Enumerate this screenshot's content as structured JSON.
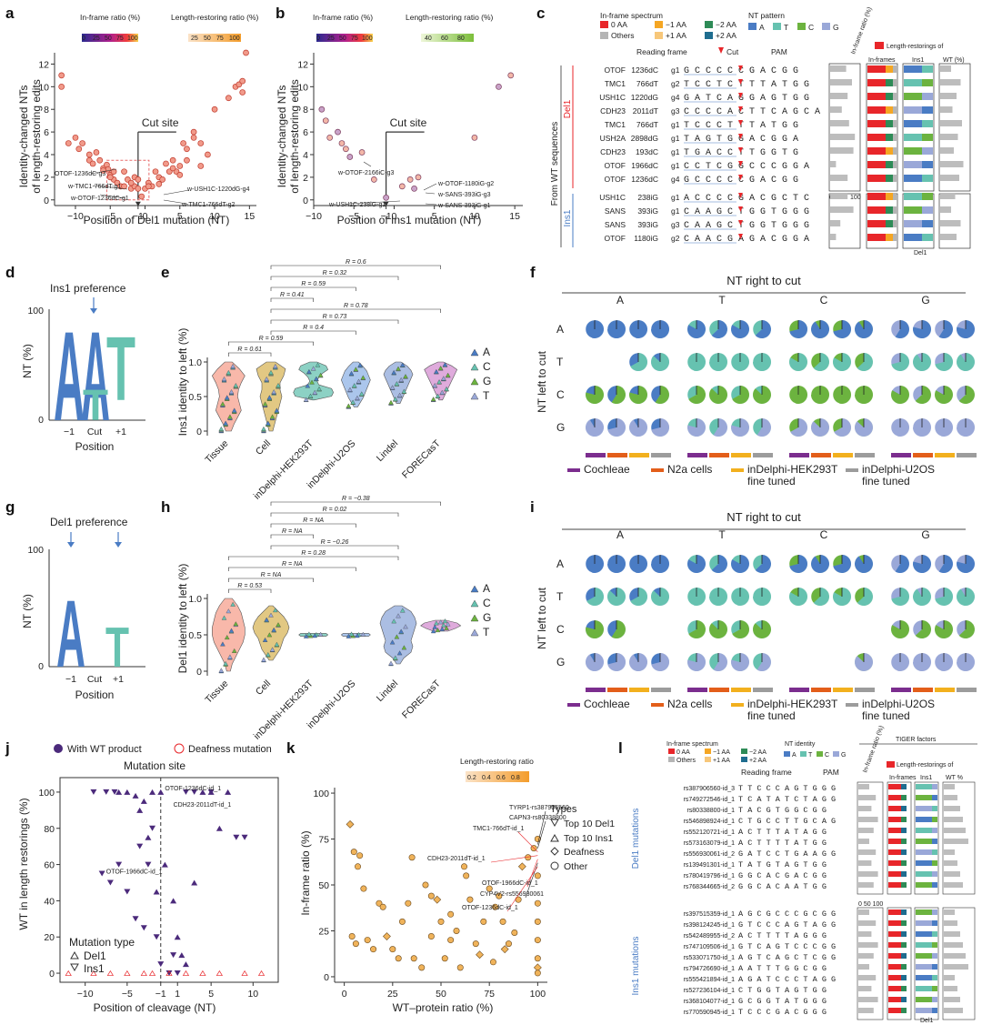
{
  "panels": {
    "a": {
      "letter": "a",
      "legend_inframe": "In-frame ratio (%)",
      "legend_inframe_ticks": [
        "0",
        "25",
        "50",
        "75",
        "100"
      ],
      "legend_length": "Length-restoring ratio (%)",
      "legend_length_ticks": [
        "25",
        "50",
        "75",
        "100"
      ],
      "ylabel_1": "Identity-changed NTs",
      "ylabel_2": "of length-restoring edits",
      "xlabel": "Position of Del1 mutation (NT)",
      "cut_label": "Cut site",
      "annotations": [
        "OTOF-1236dC-g3",
        "w-TMC1-766dT-g1",
        "w-OTOF-1236dC-g1",
        "w-USH1C-1220dG-g4",
        "w-TMC1-766dT-g2"
      ],
      "chart_data": {
        "type": "scatter",
        "xlabel": "Position of Del1 mutation (NT)",
        "ylabel": "Identity-changed NTs of length-restoring edits",
        "xlim": [
          -13,
          16
        ],
        "ylim": [
          -0.5,
          13
        ],
        "xticks": [
          -10,
          -5,
          -1,
          0,
          5,
          10,
          15
        ],
        "yticks": [
          0,
          2,
          4,
          6,
          8,
          10,
          12
        ],
        "x": [
          -12,
          -12,
          -11,
          -10,
          -9.5,
          -9,
          -8,
          -8,
          -7.5,
          -7,
          -6.5,
          -6,
          -5.5,
          -5.3,
          -5,
          -4.5,
          -4.5,
          -4,
          -3.5,
          -3,
          -3,
          -2.5,
          -2,
          -1.5,
          -1.5,
          -1,
          -0.5,
          0,
          0.5,
          1,
          1.5,
          2,
          2.5,
          3,
          3.5,
          4,
          4.5,
          5,
          5.5,
          6,
          7,
          8,
          9,
          10,
          12,
          13,
          13.5,
          14,
          14,
          14.5,
          -6,
          -5,
          -2,
          -1,
          0.5,
          2,
          4,
          5,
          6,
          7,
          8
        ],
        "y": [
          11,
          10,
          5,
          5.5,
          4.5,
          5,
          4,
          3.5,
          3.2,
          4.2,
          3.5,
          2.8,
          3.1,
          2.7,
          2.2,
          2.5,
          1.8,
          1.5,
          1.2,
          2.5,
          1.2,
          1.8,
          1,
          1.2,
          2,
          1,
          0.3,
          1,
          1.5,
          1.2,
          2.5,
          2,
          1.8,
          3.2,
          2.5,
          3.5,
          2.5,
          3,
          5,
          4.5,
          6,
          3,
          4,
          8,
          9,
          10,
          10.2,
          9.5,
          10.5,
          13,
          2.6,
          2,
          1.5,
          1.8,
          1.2,
          1.4,
          2.8,
          2.2,
          3.5,
          5.5,
          5
        ],
        "series": [
          {
            "name": "Cut site",
            "x": [
              -1,
              -1
            ],
            "y": [
              0,
              6
            ]
          }
        ]
      }
    },
    "b": {
      "letter": "b",
      "legend_inframe": "In-frame ratio (%)",
      "legend_inframe_ticks": [
        "0",
        "25",
        "50",
        "75",
        "100"
      ],
      "legend_length": "Length-restoring ratio (%)",
      "legend_length_ticks": [
        "40",
        "60",
        "80"
      ],
      "ylabel_1": "Identity-changed NTs",
      "ylabel_2": "of length-restoring edits",
      "xlabel": "Position of Ins1 mutation (NT)",
      "cut_label": "Cut site",
      "annotations": [
        "w-OTOF-2166iC-g3",
        "w-OTOF-1180iG-g2",
        "w-SANS-393iG-g3",
        "w-USH1C-238iG-g1",
        "w-SANS-393iG-g1"
      ],
      "chart_data": {
        "type": "scatter",
        "xlabel": "Position of Ins1 mutation (NT)",
        "ylabel": "Identity-changed NTs of length-restoring edits",
        "xlim": [
          -10,
          16
        ],
        "ylim": [
          -0.5,
          13
        ],
        "xticks": [
          -10,
          -5,
          -1,
          0,
          5,
          10,
          15
        ],
        "yticks": [
          0,
          2,
          4,
          6,
          8,
          10,
          12
        ],
        "x": [
          -9,
          -8.5,
          -8,
          -7,
          -6.5,
          -6,
          -5.5,
          -4,
          -2.5,
          -1,
          1,
          2,
          2.5,
          3,
          10,
          13,
          14.5
        ],
        "y": [
          8,
          7,
          5.5,
          6,
          5,
          4.5,
          3.8,
          4.2,
          1.8,
          0.2,
          1.2,
          1.8,
          1,
          2,
          5.5,
          10,
          11
        ],
        "series": [
          {
            "name": "Cut site",
            "x": [
              -1,
              -1
            ],
            "y": [
              0,
              6
            ]
          }
        ]
      }
    },
    "c": {
      "letter": "c",
      "legend_spectrum": "In-frame spectrum",
      "spectrum_items": [
        "0 AA",
        "−1 AA",
        "−2 AA",
        "Others",
        "+1 AA",
        "+2 AA"
      ],
      "legend_nt": "NT pattern",
      "nt_items": [
        "A",
        "T",
        "C",
        "G"
      ],
      "reading_frame": "Reading frame",
      "cut": "Cut",
      "pam": "PAM",
      "inframe_ratio": "In-frame ratio (%)",
      "length_restoring": "Length-restorings of",
      "col_inframes": "In-frames",
      "col_ins1": "Ins1",
      "col_wt": "WT (%)",
      "group_del": "Del1",
      "group_ins": "Ins1",
      "from_wt": "From WT sequences",
      "axis_ticks": [
        "0",
        "50",
        "100"
      ],
      "del1_under": "Del1",
      "rows": [
        {
          "gene": "OTOF",
          "mut": "1236dC",
          "g": "g1",
          "seq": "G C C C C C G A C G G"
        },
        {
          "gene": "TMC1",
          "mut": "766dT",
          "g": "g2",
          "seq": "T C C T C T T T A T G G"
        },
        {
          "gene": "USH1C",
          "mut": "1220dG",
          "g": "g4",
          "seq": "G A T C A G G A G T G G"
        },
        {
          "gene": "CDH23",
          "mut": "2011dT",
          "g": "g3",
          "seq": "C C C C A C T T C A G C A"
        },
        {
          "gene": "TMC1",
          "mut": "766dT",
          "g": "g1",
          "seq": "T C C C T T T A T G G"
        },
        {
          "gene": "USH2A",
          "mut": "2898dG",
          "g": "g1",
          "seq": "T A G T G G A C G G A"
        },
        {
          "gene": "CDH23",
          "mut": "193dC",
          "g": "g1",
          "seq": "T G A C C T T G G T G"
        },
        {
          "gene": "OTOF",
          "mut": "1966dC",
          "g": "g1",
          "seq": "C C T C G G C C C G G A"
        },
        {
          "gene": "OTOF",
          "mut": "1236dC",
          "g": "g4",
          "seq": "G C C C C C G A C G G"
        },
        {
          "gene": "USH1C",
          "mut": "238iG",
          "g": "g1",
          "seq": "A C C C C G A C G C T C"
        },
        {
          "gene": "SANS",
          "mut": "393iG",
          "g": "g1",
          "seq": "C A A G C T G G T G G G"
        },
        {
          "gene": "SANS",
          "mut": "393iG",
          "g": "g3",
          "seq": "C A A G C T G G T G G G"
        },
        {
          "gene": "OTOF",
          "mut": "1180iG",
          "g": "g2",
          "seq": "C A A C G A G A C G G A"
        }
      ]
    },
    "d": {
      "letter": "d",
      "title": "Ins1 preference",
      "ylabel": "NT (%)",
      "xlabel": "Position",
      "xticks": [
        "−1",
        "Cut",
        "+1"
      ],
      "yticks": [
        "0",
        "100"
      ]
    },
    "e": {
      "letter": "e",
      "ylabel": "Ins1 identity to left (%)",
      "groups": [
        "Tissue",
        "Cell",
        "inDelphi-HEK293T",
        "inDelphi-U2OS",
        "Lindel",
        "FORECasT"
      ],
      "yticks": [
        "0",
        "0.5",
        "1.0"
      ],
      "r_labels": [
        "R = 0.6",
        "R = 0.32",
        "R = 0.59",
        "R = 0.41",
        "R = 0.78",
        "R = 0.73",
        "R = 0.4",
        "R = 0.59",
        "R = 0.61"
      ],
      "legend": [
        "A",
        "C",
        "G",
        "T"
      ]
    },
    "f": {
      "letter": "f",
      "title": "NT right to cut",
      "ylabel": "NT left to cut",
      "cols": [
        "A",
        "T",
        "C",
        "G"
      ],
      "rows": [
        "A",
        "T",
        "C",
        "G"
      ],
      "legend": [
        "Cochleae",
        "N2a cells",
        "inDelphi-HEK293T fine tuned",
        "inDelphi-U2OS fine tuned"
      ]
    },
    "g": {
      "letter": "g",
      "title": "Del1 preference",
      "ylabel": "NT (%)",
      "xlabel": "Position",
      "xticks": [
        "−1",
        "Cut",
        "+1"
      ],
      "yticks": [
        "0",
        "100"
      ]
    },
    "h": {
      "letter": "h",
      "ylabel": "Del1 identity to left (%)",
      "groups": [
        "Tissue",
        "Cell",
        "inDelphi-HEK293T",
        "inDelphi-U2OS",
        "Lindel",
        "FORECasT"
      ],
      "yticks": [
        "0",
        "0.5",
        "1.0"
      ],
      "r_labels": [
        "R = −0.38",
        "R = 0.02",
        "R = NA",
        "R = NA",
        "R = −0.26",
        "R = 0.28",
        "R = NA",
        "R = NA",
        "R = 0.53"
      ],
      "legend": [
        "A",
        "C",
        "G",
        "T"
      ]
    },
    "i": {
      "letter": "i",
      "title": "NT right to cut",
      "ylabel": "NT left to cut",
      "cols": [
        "A",
        "T",
        "C",
        "G"
      ],
      "rows": [
        "A",
        "T",
        "C",
        "G"
      ],
      "legend": [
        "Cochleae",
        "N2a cells",
        "inDelphi-HEK293T fine tuned",
        "inDelphi-U2OS fine tuned"
      ]
    },
    "j": {
      "letter": "j",
      "legend_wt": "With WT product",
      "legend_deaf": "Deafness mutation",
      "title": "Mutation site",
      "ylabel": "WT in length restorings (%)",
      "xlabel": "Position of cleavage (NT)",
      "mut_type": "Mutation type",
      "mut_del": "Del1",
      "mut_ins": "Ins1",
      "annotations": [
        "OTOF-1236dC-id_1",
        "CDH23-2011dT-id_1",
        "OTOF-1966dC-id_1"
      ],
      "chart_data": {
        "type": "scatter",
        "xlabel": "Position of cleavage (NT)",
        "ylabel": "WT in length restorings (%)",
        "xlim": [
          -13,
          13
        ],
        "ylim": [
          -5,
          108
        ],
        "xticks": [
          -10,
          -5,
          -1,
          1,
          5,
          10
        ],
        "yticks": [
          0,
          20,
          40,
          60,
          80,
          100
        ],
        "series": [
          {
            "name": "Del1",
            "x": [
              -6,
              -5,
              -4,
              -3,
              -2,
              -1,
              -0.5,
              0.5,
              1,
              1.5,
              2,
              3,
              4,
              5,
              6,
              7,
              -3.5,
              -2.5,
              -1.5
            ],
            "y": [
              100,
              100,
              98,
              95,
              100,
              100,
              60,
              40,
              20,
              10,
              5,
              50,
              100,
              100,
              80,
              100,
              90,
              75,
              45
            ]
          },
          {
            "name": "Ins1",
            "x": [
              -9,
              -8,
              -7,
              -6,
              -5,
              -4,
              -3,
              -2,
              -1,
              0,
              1,
              2,
              3,
              5,
              8,
              9,
              -7.5,
              -6.5,
              -3.5,
              -2.5,
              -1.5,
              0.5
            ],
            "y": [
              100,
              55,
              50,
              60,
              45,
              30,
              25,
              80,
              5,
              0,
              0,
              100,
              100,
              100,
              75,
              75,
              100,
              100,
              70,
              60,
              20,
              10
            ]
          }
        ]
      }
    },
    "k": {
      "letter": "k",
      "legend_title": "Length-restoring ratio",
      "legend_ticks": [
        "0.2",
        "0.4",
        "0.6",
        "0.8"
      ],
      "ylabel": "In-frame ratio (%)",
      "xlabel": "WT–protein ratio (%)",
      "types_title": "Types",
      "types": [
        "Top 10 Del1",
        "Top 10 Ins1",
        "Deafness",
        "Other"
      ],
      "annotations": [
        "TYRP1-rs387906560",
        "CAPN3-rs80338800",
        "TMC1-766dT-id_1",
        "CDH23-2011dT-id_1",
        "OTOF-1966dC-id_1",
        "CYP4V2-rs556930061",
        "OTOF-1236dC-id_1"
      ],
      "chart_data": {
        "type": "scatter",
        "xlabel": "WT–protein ratio (%)",
        "ylabel": "In-frame ratio (%)",
        "xlim": [
          -5,
          105
        ],
        "ylim": [
          -3,
          103
        ],
        "xticks": [
          0,
          25,
          50,
          75,
          100
        ],
        "yticks": [
          0,
          25,
          50,
          75,
          100
        ],
        "x": [
          3,
          5,
          8,
          4,
          6,
          12,
          15,
          18,
          20,
          22,
          25,
          28,
          30,
          33,
          36,
          40,
          42,
          45,
          48,
          50,
          52,
          55,
          58,
          60,
          62,
          65,
          68,
          70,
          72,
          75,
          78,
          80,
          82,
          85,
          88,
          90,
          92,
          95,
          98,
          100,
          100,
          100,
          100,
          100,
          100,
          100,
          100,
          7,
          10,
          35,
          45,
          55,
          63,
          77,
          83
        ],
        "y": [
          83,
          68,
          66,
          22,
          18,
          20,
          15,
          40,
          38,
          22,
          15,
          10,
          30,
          40,
          10,
          5,
          50,
          22,
          42,
          30,
          10,
          20,
          25,
          5,
          60,
          42,
          18,
          12,
          30,
          48,
          38,
          44,
          30,
          18,
          24,
          42,
          60,
          65,
          70,
          75,
          55,
          40,
          30,
          20,
          10,
          5,
          2,
          60,
          48,
          65,
          44,
          34,
          55,
          8,
          15
        ]
      }
    },
    "l": {
      "letter": "l",
      "legend_spectrum": "In-frame spectrum",
      "spectrum_items": [
        "0 AA",
        "−1 AA",
        "−2 AA",
        "Others",
        "+1 AA",
        "+2 AA"
      ],
      "legend_nt": "NT identity",
      "nt_items": [
        "A",
        "T",
        "C",
        "G"
      ],
      "tiger": "TIGER factors",
      "reading_frame": "Reading frame",
      "pam": "PAM",
      "inframe_ratio": "In-frame ratio (%)",
      "length_restoring": "Length-restorings of",
      "col_inframes": "In-frames",
      "col_ins1": "Ins1",
      "col_wt": "WT %",
      "group_del": "Del1 mutations",
      "group_ins": "Ins1 mutations",
      "axis_ticks": [
        "0",
        "50",
        "100"
      ],
      "del1_under": "Del1",
      "del_rows": [
        "rs387906560-id_3",
        "rs749272546-id_1",
        "rs80338800-id_1",
        "rs546898924-id_1",
        "rs552120721-id_1",
        "rs573163079-id_1",
        "rs556930061-id_2",
        "rs139491301-id_1",
        "rs780419796-id_1",
        "rs768344665-id_2"
      ],
      "ins_rows": [
        "rs397515359-id_1",
        "rs398124245-id_1",
        "rs542489955-id_2",
        "rs747109506-id_1",
        "rs533071750-id_1",
        "rs794726690-id_1",
        "rs555421894-id_1",
        "rs527236104-id_1",
        "rs368104077-id_1",
        "rs770590945-id_1"
      ],
      "del_seqs": [
        "T T C C C A G T G G G",
        "T C A T A T C T A G G",
        "T A C G T G G C G G",
        "C T G C C T T G C A G",
        "A C T T T A T A G G",
        "A C T T T T A T G G",
        "G A T C C T G A A G G",
        "T A T G T A G T G G",
        "G G C A C G A C G G",
        "G G C A C A A T G G"
      ],
      "ins_seqs": [
        "A G C G C C C G C G G",
        "G T C C C A G T A G G",
        "A C T T T T A G G G",
        "G T C A G T C C C G G",
        "A G T C A G C T C G G",
        "A A T T T G G C G G",
        "A G A T C C C T A G G",
        "C T G G T A G T G G",
        "G C G G T A T G G G",
        "T C C C G A C G G G"
      ]
    }
  },
  "colors": {
    "A": "#4a7cc4",
    "T": "#66c2b0",
    "C": "#6cb33f",
    "G": "#9aa8d8",
    "red": "#e8262a",
    "orange": "#f5a623",
    "cochleae": "#7b2d8e",
    "n2a": "#e35e1a",
    "hek": "#f2b01e",
    "u2os": "#9c9c9c",
    "scatter_fill": "#f19a8a",
    "scatter_stroke": "#c0392b",
    "k_fill": "#f0b35a",
    "j_purple": "#4b2a7b"
  }
}
